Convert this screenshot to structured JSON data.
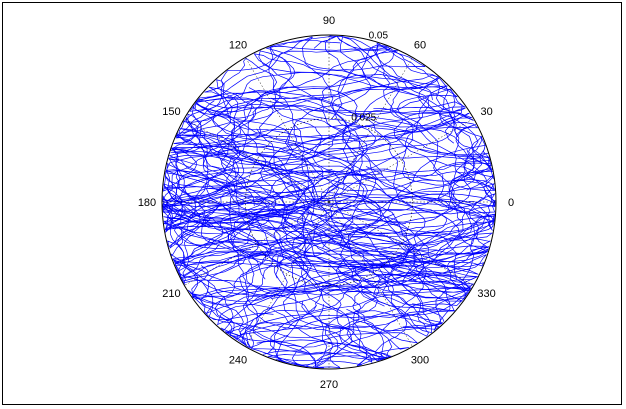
{
  "chart_data": {
    "type": "polar-line",
    "angle_unit": "degrees",
    "angle_ticks": [
      0,
      30,
      60,
      90,
      120,
      150,
      180,
      210,
      240,
      270,
      300,
      330
    ],
    "angle_tick_labels": [
      "0",
      "30",
      "60",
      "90",
      "120",
      "150",
      "180",
      "210",
      "240",
      "270",
      "300",
      "330"
    ],
    "radial_ticks": [
      0.025,
      0.05
    ],
    "radial_tick_labels": [
      "0.025",
      "0.05"
    ],
    "rlim": [
      0,
      0.05
    ],
    "grid": true,
    "series_color": "#0000ff",
    "series_description": "dense random trajectory filling the polar disc",
    "title": "",
    "legend": "none"
  },
  "colors": {
    "background": "#ffffff",
    "frame": "#000000",
    "grid": "#000000",
    "series": "#0000ff"
  }
}
